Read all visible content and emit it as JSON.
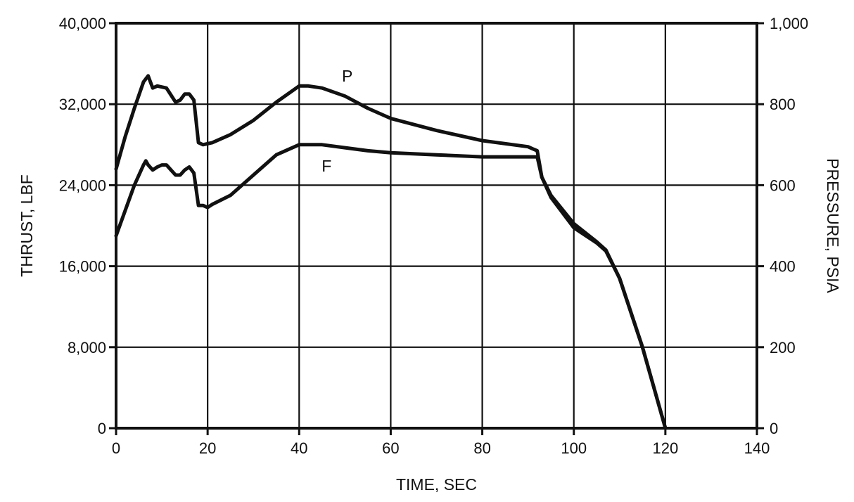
{
  "chart_data": {
    "type": "line",
    "xlabel": "TIME, SEC",
    "ylabel_left": "THRUST, LBF",
    "ylabel_right": "PRESSURE, PSIA",
    "xlim": [
      0,
      140
    ],
    "ylim_left": [
      0,
      40000
    ],
    "ylim_right": [
      0,
      1000
    ],
    "grid": true,
    "x_ticks": [
      "0",
      "20",
      "40",
      "60",
      "80",
      "100",
      "120",
      "140"
    ],
    "y_left_ticks": [
      "0",
      "8,000",
      "16,000",
      "24,000",
      "32,000",
      "40,000"
    ],
    "y_right_ticks": [
      "0",
      "200",
      "400",
      "600",
      "800",
      "1,000"
    ],
    "series": [
      {
        "name": "P",
        "axis": "right",
        "x": [
          0,
          2,
          4,
          6,
          7,
          7.5,
          8,
          9,
          11,
          13,
          14,
          15,
          16,
          17,
          18,
          19,
          21,
          25,
          30,
          35,
          40,
          42,
          45,
          50,
          55,
          60,
          70,
          80,
          90,
          91,
          92,
          93,
          95,
          100,
          105,
          107,
          110,
          115,
          120
        ],
        "y": [
          640,
          720,
          790,
          855,
          870,
          855,
          840,
          845,
          840,
          805,
          810,
          825,
          825,
          810,
          705,
          700,
          705,
          725,
          760,
          805,
          845,
          845,
          840,
          820,
          790,
          765,
          735,
          710,
          695,
          690,
          685,
          620,
          575,
          505,
          460,
          440,
          370,
          200,
          0
        ]
      },
      {
        "name": "F",
        "axis": "left",
        "x": [
          0,
          2,
          4,
          6,
          6.5,
          7,
          8,
          9,
          10,
          11,
          12,
          13,
          14,
          15,
          16,
          17,
          18,
          19,
          20,
          21,
          25,
          30,
          35,
          40,
          42,
          45,
          50,
          55,
          60,
          70,
          80,
          90,
          91,
          92,
          93,
          95,
          100,
          105,
          107,
          110,
          115,
          120
        ],
        "y": [
          19000,
          21500,
          24000,
          26000,
          26400,
          26000,
          25500,
          25800,
          26000,
          26000,
          25500,
          25000,
          25000,
          25500,
          25800,
          25200,
          22000,
          22000,
          21800,
          22100,
          23000,
          25000,
          27000,
          28000,
          28000,
          28000,
          27700,
          27400,
          27200,
          27000,
          26800,
          26800,
          26800,
          26800,
          24800,
          22800,
          19800,
          18300,
          17500,
          14800,
          8000,
          0
        ]
      }
    ],
    "annotations": [
      "P",
      "F"
    ]
  }
}
